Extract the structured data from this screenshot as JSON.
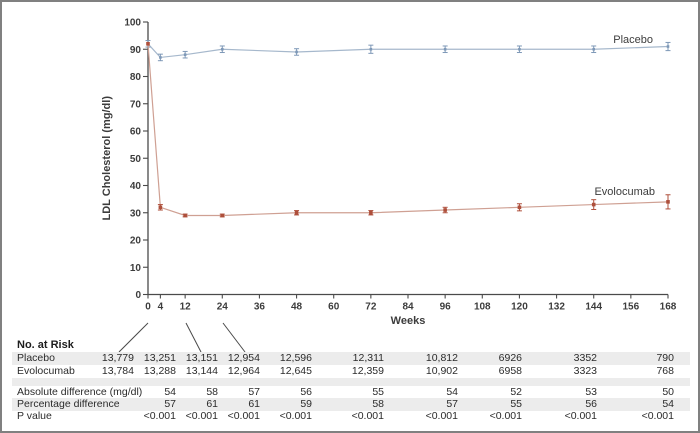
{
  "figure": {
    "background": "#ffffff",
    "border_color": "#808080",
    "text_color": "#2b2b2b"
  },
  "chart_data": {
    "type": "line",
    "title": "",
    "xlabel": "Weeks",
    "ylabel": "LDL Cholesterol (mg/dl)",
    "xlim": [
      0,
      168
    ],
    "ylim": [
      0,
      100
    ],
    "x_ticks": [
      0,
      4,
      12,
      24,
      36,
      48,
      60,
      72,
      84,
      96,
      108,
      120,
      132,
      144,
      156,
      168
    ],
    "y_ticks": [
      0,
      10,
      20,
      30,
      40,
      50,
      60,
      70,
      80,
      90,
      100
    ],
    "grid": false,
    "legend_position": "inline-right",
    "x": [
      0,
      4,
      12,
      24,
      48,
      72,
      96,
      120,
      144,
      168
    ],
    "series": [
      {
        "name": "Placebo",
        "line_color": "#a6b8cc",
        "marker_color": "#7e98b7",
        "values": [
          92,
          87,
          88,
          90,
          89,
          90,
          90,
          90,
          90,
          91
        ],
        "err": [
          1.2,
          1.2,
          1.2,
          1.2,
          1.2,
          1.5,
          1.2,
          1.2,
          1.2,
          1.5
        ]
      },
      {
        "name": "Evolocumab",
        "line_color": "#cfa093",
        "marker_color": "#ae4f3b",
        "values": [
          92,
          32,
          29,
          29,
          30,
          30,
          31,
          32,
          33,
          34
        ],
        "err": [
          0,
          1.0,
          0.5,
          0.5,
          0.8,
          0.8,
          1.0,
          1.3,
          1.8,
          2.6
        ]
      }
    ]
  },
  "table": {
    "header": "No. at Risk",
    "rows": [
      {
        "label": "Placebo",
        "striped": true,
        "spacer": false,
        "values": [
          "13,779",
          "13,251",
          "13,151",
          "12,954",
          "12,596",
          "12,311",
          "10,812",
          "6926",
          "3352",
          "790"
        ]
      },
      {
        "label": "Evolocumab",
        "striped": false,
        "spacer": false,
        "values": [
          "13,784",
          "13,288",
          "13,144",
          "12,964",
          "12,645",
          "12,359",
          "10,902",
          "6958",
          "3323",
          "768"
        ]
      },
      {
        "label": "",
        "striped": true,
        "spacer": true,
        "values": []
      },
      {
        "label": "Absolute difference (mg/dl)",
        "striped": false,
        "spacer": false,
        "values": [
          "",
          "54",
          "58",
          "57",
          "56",
          "55",
          "54",
          "52",
          "53",
          "50"
        ]
      },
      {
        "label": "Percentage difference",
        "striped": true,
        "spacer": false,
        "values": [
          "",
          "57",
          "61",
          "61",
          "59",
          "58",
          "57",
          "55",
          "56",
          "54"
        ]
      },
      {
        "label": "P value",
        "striped": false,
        "spacer": false,
        "values": [
          "",
          "<0.001",
          "<0.001",
          "<0.001",
          "<0.001",
          "<0.001",
          "<0.001",
          "<0.001",
          "<0.001",
          "<0.001"
        ]
      }
    ]
  }
}
